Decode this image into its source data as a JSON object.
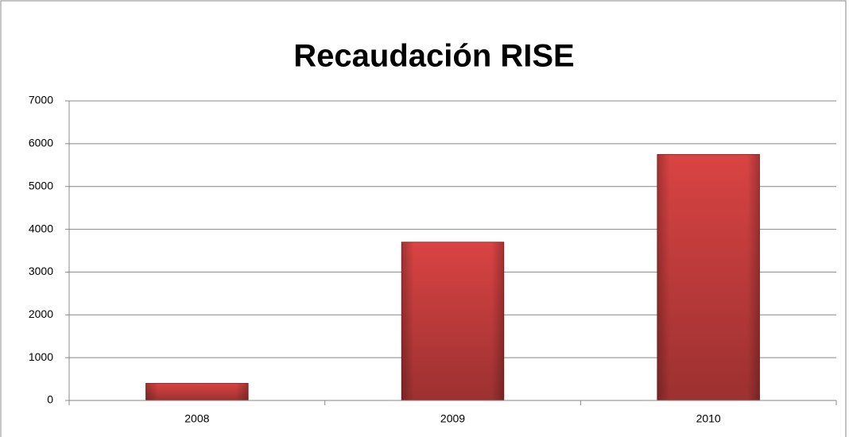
{
  "chart_data": {
    "type": "bar",
    "title": "Recaudación RISE",
    "categories": [
      "2008",
      "2009",
      "2010"
    ],
    "values": [
      400,
      3700,
      5750
    ],
    "color": "#d94343",
    "ylim": [
      0,
      7000
    ],
    "yticks": [
      0,
      1000,
      2000,
      3000,
      4000,
      5000,
      6000,
      7000
    ],
    "grid": true
  }
}
